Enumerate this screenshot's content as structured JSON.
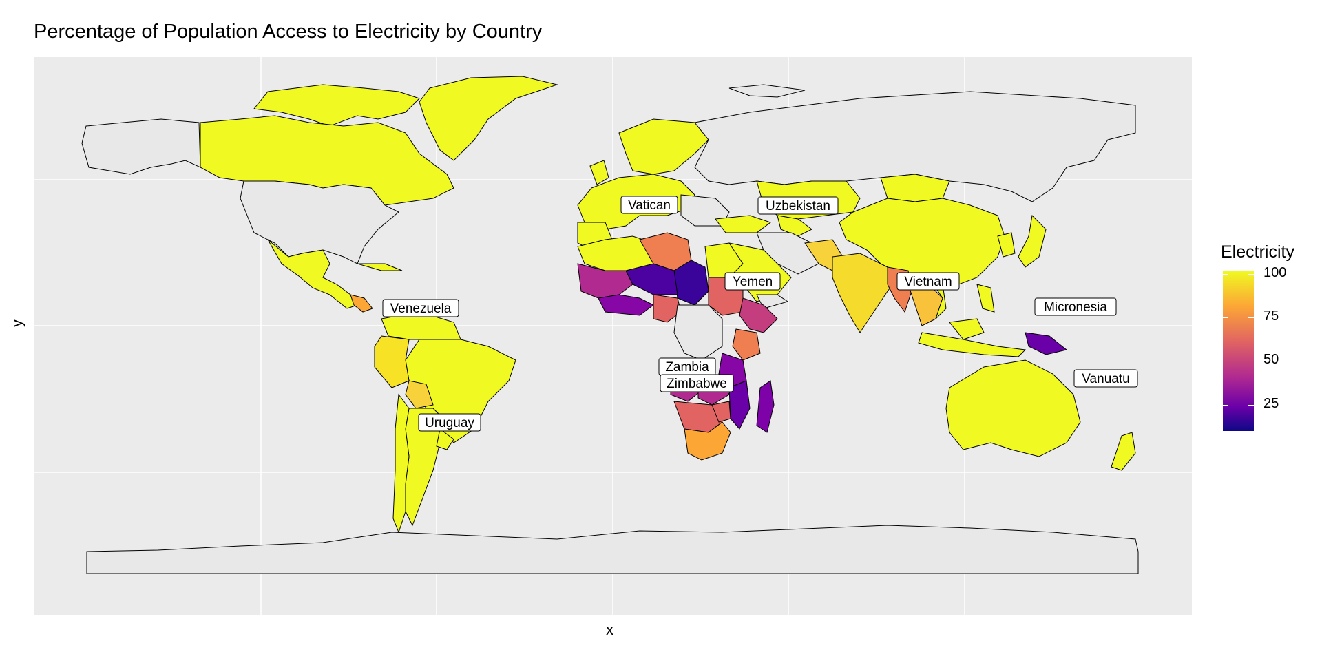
{
  "title": "Percentage of Population Access to Electricity by Country",
  "x_label": "x",
  "y_label": "y",
  "legend": {
    "title": "Electricity",
    "ticks": [
      "100",
      "75",
      "50",
      "25"
    ],
    "colors": {
      "high": "#f0f921",
      "mid_high": "#fca636",
      "mid": "#e16462",
      "mid_low": "#b12a90",
      "low": "#6a00a8",
      "lowest": "#0d0887",
      "no_data": "#e8e8e8"
    }
  },
  "country_labels": [
    "Vatican",
    "Uzbekistan",
    "Yemen",
    "Vietnam",
    "Venezuela",
    "Micronesia",
    "Zambia",
    "Zimbabwe",
    "Vanuatu",
    "Uruguay"
  ]
}
